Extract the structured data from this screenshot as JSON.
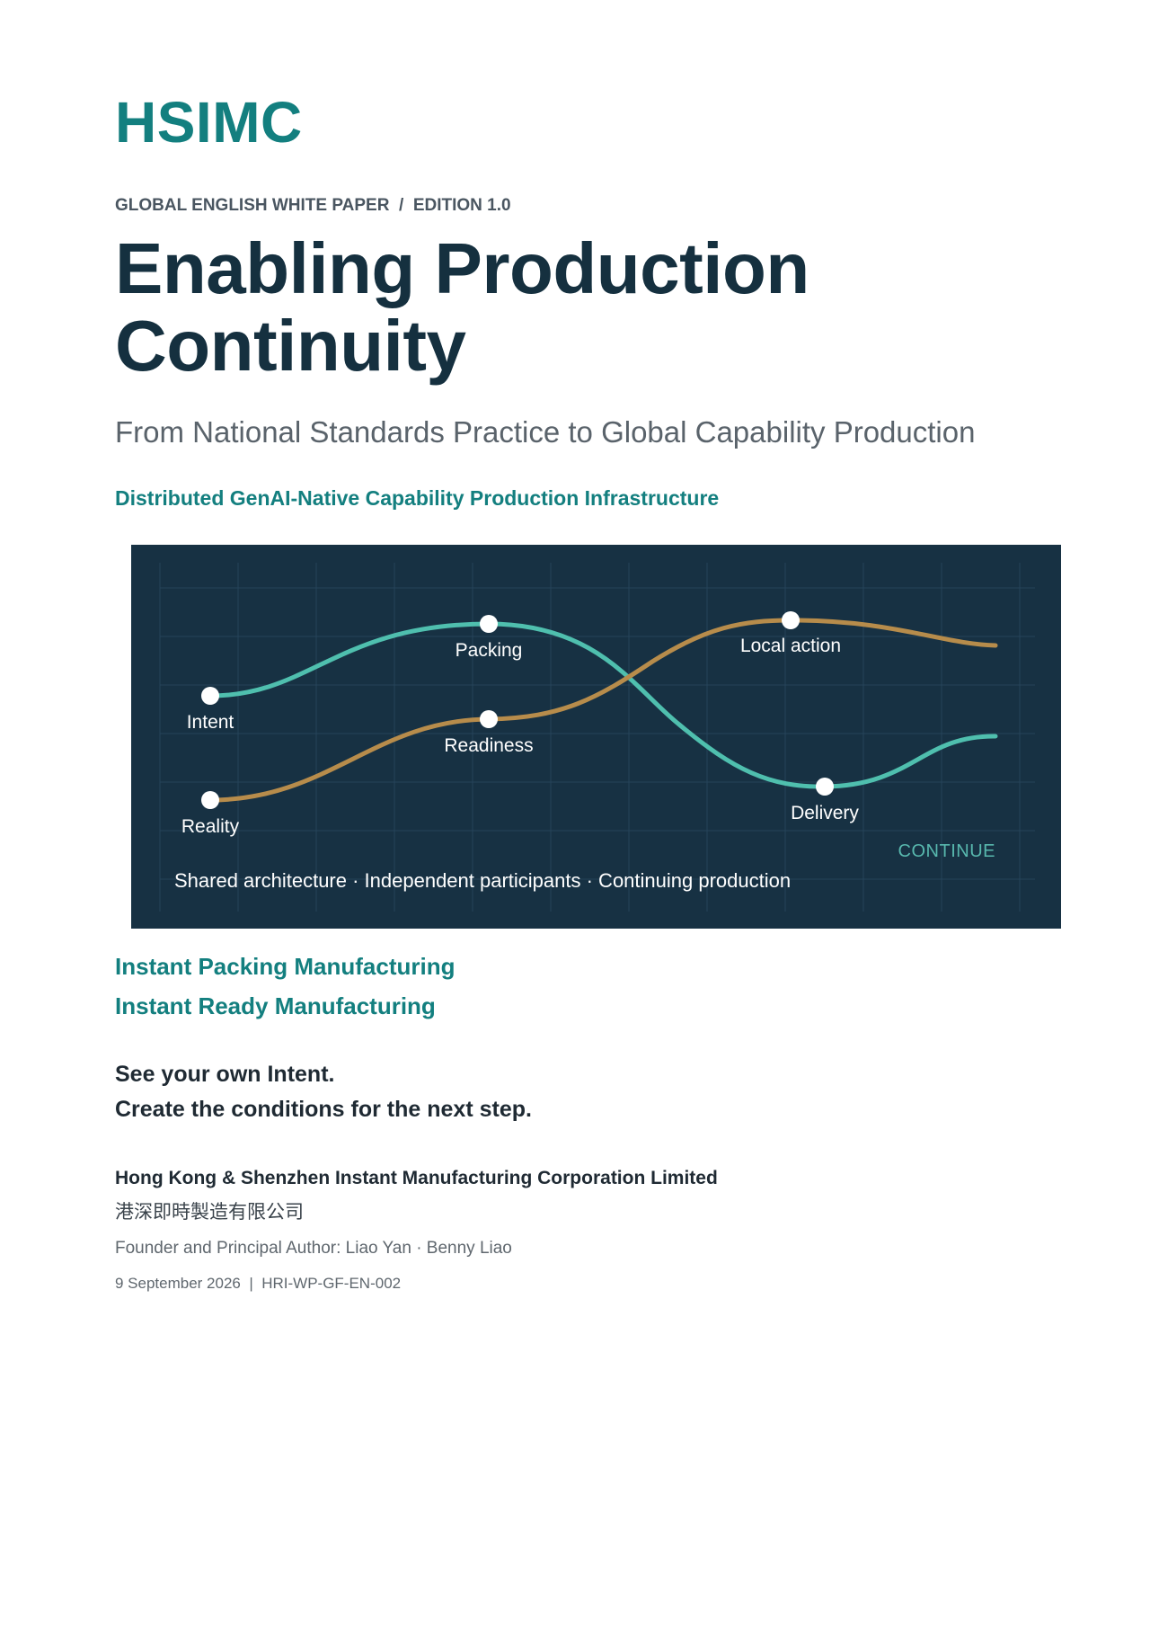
{
  "brand": "HSIMC",
  "series": {
    "type": "GLOBAL ENGLISH WHITE PAPER",
    "separator": "/",
    "edition": "EDITION 1.0"
  },
  "title": {
    "line1": "Enabling Production",
    "line2": "Continuity"
  },
  "subtitle": "From National Standards Practice to Global Capability Production",
  "tagline": "Distributed GenAI-Native Capability Production Infrastructure",
  "hero": {
    "colors": {
      "background": "#173143",
      "grid": "#25445a",
      "teal_line": "#4fbfae",
      "gold_line": "#b78c4b",
      "node": "#ffffff",
      "label": "#ffffff",
      "continue": "#58b8ae"
    },
    "nodes": {
      "intent": "Intent",
      "packing": "Packing",
      "local_action": "Local action",
      "readiness": "Readiness",
      "reality": "Reality",
      "delivery": "Delivery"
    },
    "continue": "CONTINUE",
    "caption": "Shared architecture · Independent participants · Continuing production"
  },
  "products": {
    "line1": "Instant Packing Manufacturing",
    "line2": "Instant Ready Manufacturing"
  },
  "motto": {
    "line1": "See your own Intent.",
    "line2": "Create the conditions for the next step."
  },
  "company": {
    "name_en": "Hong Kong & Shenzhen Instant Manufacturing Corporation Limited",
    "name_cn": "港深即時製造有限公司"
  },
  "author": "Founder and Principal Author: Liao Yan · Benny Liao",
  "meta": {
    "date": "9 September 2026",
    "separator": "|",
    "doc_id": "HRI-WP-GF-EN-002"
  }
}
